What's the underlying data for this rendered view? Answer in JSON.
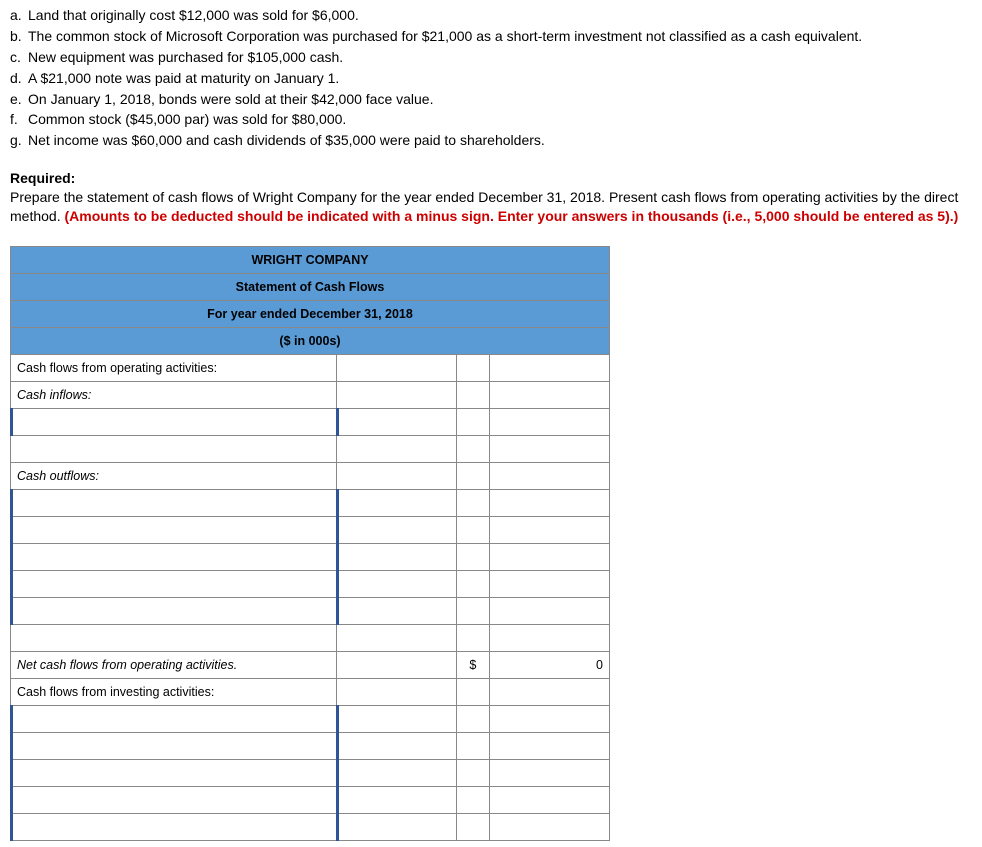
{
  "transactions": [
    {
      "letter": "a.",
      "text": "Land that originally cost $12,000 was sold for $6,000."
    },
    {
      "letter": "b.",
      "text": "The common stock of Microsoft Corporation was purchased for $21,000 as a short-term investment not classified as a cash equivalent."
    },
    {
      "letter": "c.",
      "text": "New equipment was purchased for $105,000 cash."
    },
    {
      "letter": "d.",
      "text": "A $21,000 note was paid at maturity on January 1."
    },
    {
      "letter": "e.",
      "text": "On January 1, 2018, bonds were sold at their $42,000 face value."
    },
    {
      "letter": "f.",
      "text": "Common stock ($45,000 par) was sold for $80,000."
    },
    {
      "letter": "g.",
      "text": "Net income was $60,000 and cash dividends of $35,000 were paid to shareholders."
    }
  ],
  "required": {
    "label": "Required:",
    "text_pre": "Prepare the statement of cash flows of Wright Company for the year ended December 31, 2018. Present cash flows from operating activities by the direct method. ",
    "text_red": "(Amounts to be deducted should be indicated with a minus sign. Enter your answers in thousands (i.e., 5,000 should be entered as 5).)"
  },
  "table": {
    "header1": "WRIGHT COMPANY",
    "header2": "Statement of Cash Flows",
    "header3": "For year ended December 31, 2018",
    "header4": "($ in 000s)",
    "row_operating": "Cash flows from operating activities:",
    "row_inflows": "Cash inflows:",
    "row_outflows": "Cash outflows:",
    "row_net_operating": "Net cash flows from operating activities.",
    "row_investing": "Cash flows from investing activities:",
    "dollar": "$",
    "zero": "0"
  }
}
